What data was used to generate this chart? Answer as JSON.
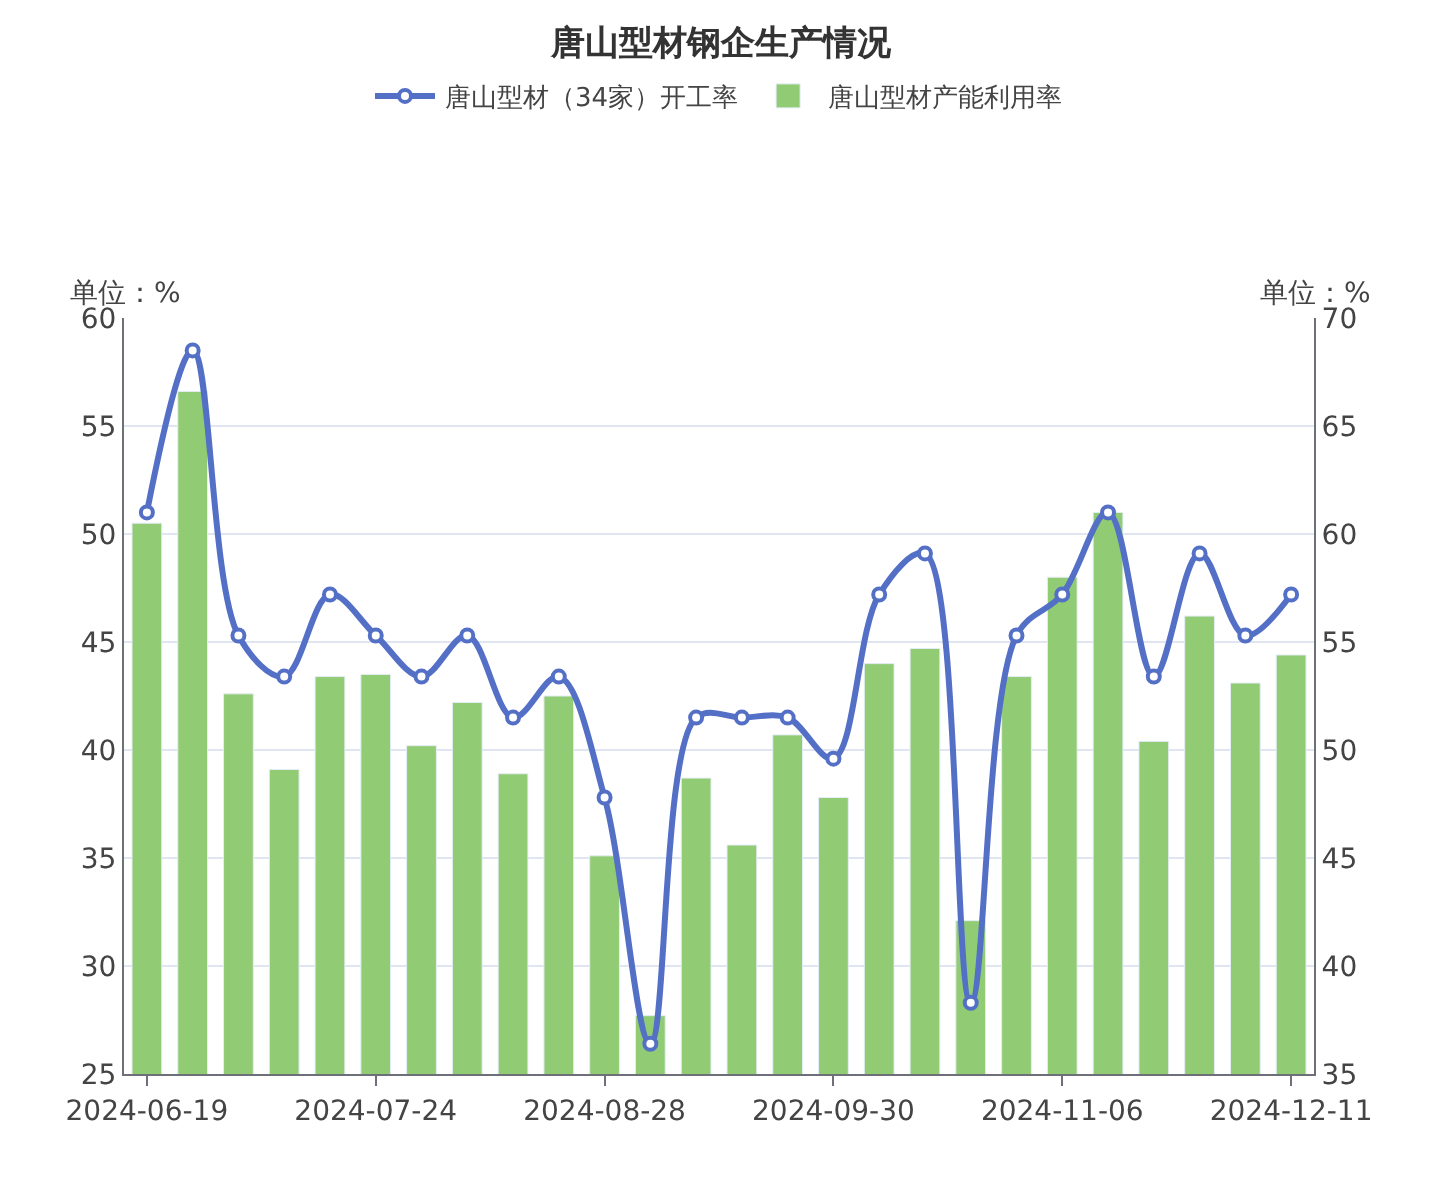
{
  "chart_data": {
    "type": "bar",
    "title": "唐山型材钢企生产情况",
    "ylabel": "单位：%",
    "y2label": "单位：%",
    "categories": [
      "2024-06-19",
      null,
      null,
      null,
      null,
      "2024-07-24",
      null,
      null,
      null,
      null,
      "2024-08-28",
      null,
      null,
      null,
      null,
      "2024-09-30",
      null,
      null,
      null,
      null,
      "2024-11-06",
      null,
      null,
      null,
      null,
      "2024-12-11"
    ],
    "series": [
      {
        "name": "唐山型材（34家）开工率",
        "type": "line",
        "axis": "y2",
        "color": "#5470c6",
        "marker": "circle",
        "values": [
          61.0,
          68.5,
          55.3,
          53.4,
          57.2,
          55.3,
          53.4,
          55.3,
          51.5,
          53.4,
          47.8,
          36.4,
          51.5,
          51.5,
          51.5,
          49.6,
          57.2,
          59.1,
          38.3,
          55.3,
          57.2,
          61.0,
          53.4,
          59.1,
          55.3,
          57.2
        ]
      },
      {
        "name": "唐山型材产能利用率",
        "color": "#91cc75",
        "values": [
          50.5,
          56.6,
          42.6,
          39.1,
          43.4,
          43.5,
          40.2,
          42.2,
          38.9,
          42.5,
          35.1,
          27.7,
          38.7,
          35.6,
          40.7,
          37.8,
          44.0,
          44.7,
          32.1,
          43.4,
          48.0,
          51.0,
          40.4,
          46.2,
          43.1,
          44.4
        ]
      }
    ],
    "ylim": [
      25,
      60
    ],
    "yticks": [
      25,
      30,
      35,
      40,
      45,
      50,
      55,
      60
    ],
    "y2lim": [
      35,
      70
    ],
    "y2ticks": [
      35,
      40,
      45,
      50,
      55,
      60,
      65,
      70
    ],
    "grid": "y",
    "legend": "top"
  }
}
